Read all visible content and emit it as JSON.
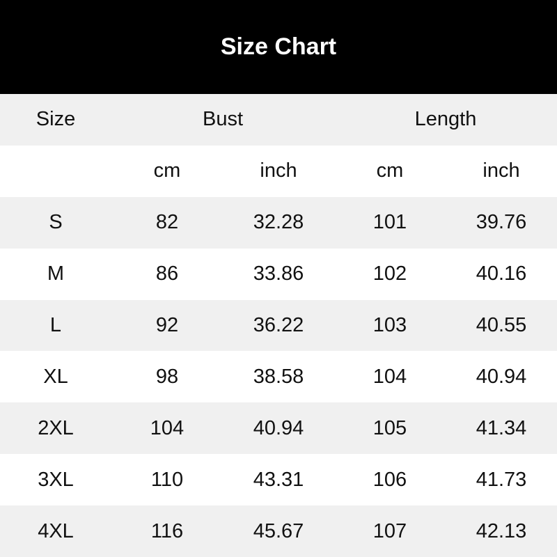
{
  "header": {
    "title": "Size Chart"
  },
  "colors": {
    "banner_bg": "#000000",
    "banner_text": "#ffffff",
    "stripe_bg": "#f0f0f0",
    "row_bg": "#ffffff",
    "table_text": "#111111"
  },
  "table": {
    "col_groups": {
      "size": "Size",
      "bust": "Bust",
      "length": "Length"
    },
    "units": {
      "cm": "cm",
      "inch": "inch"
    }
  },
  "chart_data": {
    "type": "table",
    "title": "Size Chart",
    "columns": [
      "Size",
      "Bust cm",
      "Bust inch",
      "Length cm",
      "Length inch"
    ],
    "rows": [
      [
        "S",
        "82",
        "32.28",
        "101",
        "39.76"
      ],
      [
        "M",
        "86",
        "33.86",
        "102",
        "40.16"
      ],
      [
        "L",
        "92",
        "36.22",
        "103",
        "40.55"
      ],
      [
        "XL",
        "98",
        "38.58",
        "104",
        "40.94"
      ],
      [
        "2XL",
        "104",
        "40.94",
        "105",
        "41.34"
      ],
      [
        "3XL",
        "110",
        "43.31",
        "106",
        "41.73"
      ],
      [
        "4XL",
        "116",
        "45.67",
        "107",
        "42.13"
      ]
    ]
  }
}
